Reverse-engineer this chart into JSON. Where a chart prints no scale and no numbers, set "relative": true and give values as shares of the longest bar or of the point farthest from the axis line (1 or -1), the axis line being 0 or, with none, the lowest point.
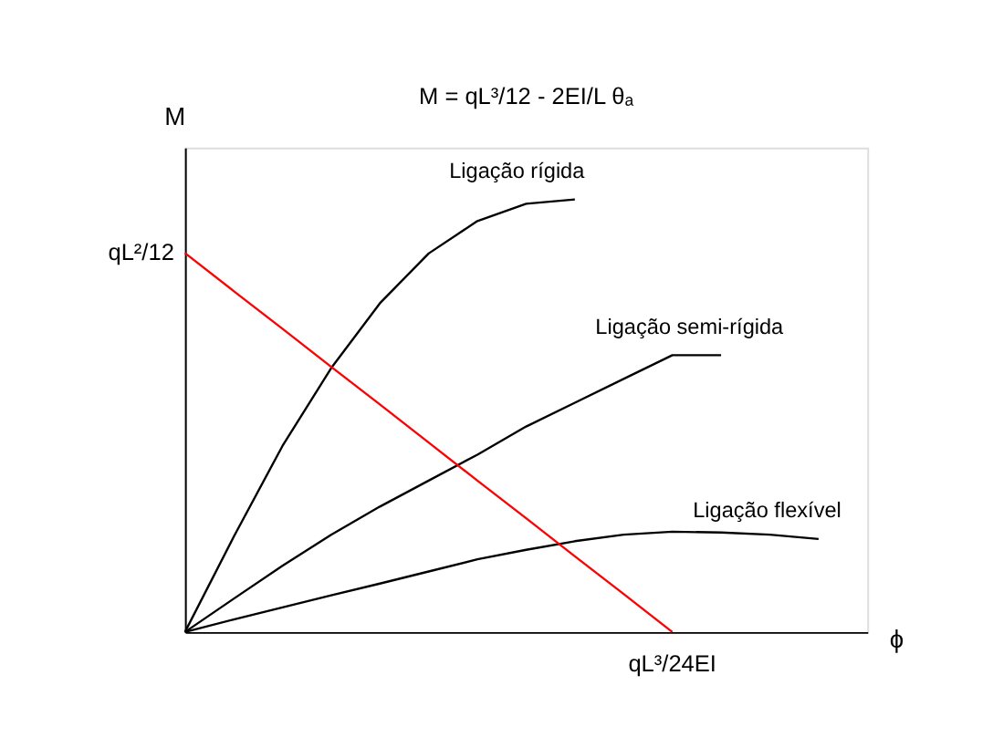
{
  "chart_data": {
    "type": "line",
    "relative": true,
    "xlabel": "ϕ",
    "ylabel": "M",
    "marker": "none",
    "line_style": "solid",
    "categories": [
      null,
      null,
      null,
      null,
      null,
      null,
      null,
      null,
      null,
      null,
      null,
      null,
      null,
      null,
      null
    ],
    "series": [
      {
        "name": "Ligação rígida",
        "color": "#000000",
        "values": [
          0,
          0.22,
          0.43,
          0.61,
          0.76,
          0.875,
          0.95,
          0.99,
          1.0,
          null,
          null,
          null,
          null,
          null,
          null
        ]
      },
      {
        "name": "Ligação semi-rígida",
        "color": "#000000",
        "values": [
          0,
          0.077,
          0.153,
          0.225,
          0.29,
          0.35,
          0.41,
          0.475,
          0.53,
          0.585,
          0.64,
          0.64,
          null,
          null,
          null
        ]
      },
      {
        "name": "Ligação flexível",
        "color": "#000000",
        "values": [
          0,
          0.029,
          0.057,
          0.085,
          0.112,
          0.14,
          0.168,
          0.19,
          0.21,
          0.225,
          0.232,
          0.23,
          0.225,
          0.215,
          null
        ]
      },
      {
        "color": "#ff0000",
        "values": [
          0.876,
          0.788,
          0.701,
          0.613,
          0.526,
          0.438,
          0.35,
          0.263,
          0.175,
          0.088,
          0,
          null,
          null,
          null,
          null
        ]
      }
    ],
    "annotations": [
      "M = qL³/12 - 2EI/L θₐ",
      "qL²/12",
      "qL³/24EI"
    ]
  }
}
